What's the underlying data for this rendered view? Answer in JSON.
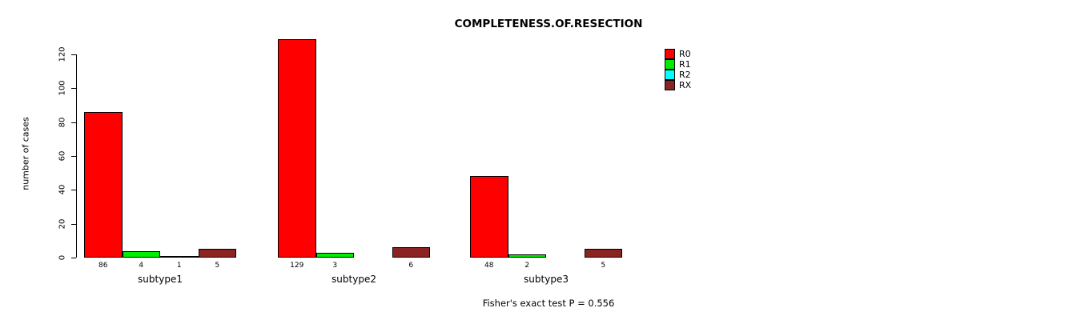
{
  "title": "COMPLETENESS.OF.RESECTION",
  "footer": "Fisher's exact test P = 0.556",
  "chart_data": {
    "type": "bar",
    "title": "COMPLETENESS.OF.RESECTION",
    "xlabel": "",
    "ylabel": "number of cases",
    "ylim": [
      0,
      130
    ],
    "yticks": [
      0,
      20,
      40,
      60,
      80,
      100,
      120
    ],
    "grid": false,
    "legend_position": "top-right",
    "categories": [
      "subtype1",
      "subtype2",
      "subtype3"
    ],
    "series": [
      {
        "name": "R0",
        "color": "#ff0000",
        "values": [
          86,
          129,
          48
        ],
        "labels": [
          "86",
          "129",
          "48"
        ]
      },
      {
        "name": "R1",
        "color": "#00ee00",
        "values": [
          4,
          3,
          2
        ],
        "labels": [
          "4",
          "3",
          "2"
        ]
      },
      {
        "name": "R2",
        "color": "#00ffff",
        "values": [
          1,
          0,
          0
        ],
        "labels": [
          "1",
          "",
          ""
        ]
      },
      {
        "name": "RX",
        "color": "#8b2323",
        "values": [
          5,
          6,
          5
        ],
        "labels": [
          "5",
          "6",
          "5"
        ]
      }
    ],
    "annotation": "Fisher's exact test P = 0.556"
  }
}
